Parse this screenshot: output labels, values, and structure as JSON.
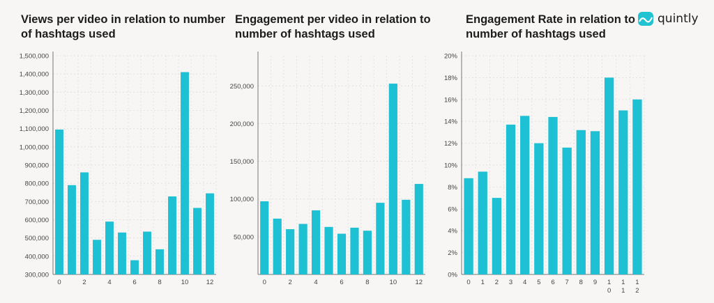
{
  "brand": {
    "name": "quintly",
    "icon": "wave-logo-icon",
    "color": "#21c2d2"
  },
  "colors": {
    "bar": "#1ec0d3",
    "grid": "#dcdcdc",
    "axis": "#777777"
  },
  "chart_data": [
    {
      "type": "bar",
      "title_lines": [
        "Views per video in relation to number",
        "of hashtags used"
      ],
      "categories": [
        "0",
        "1",
        "2",
        "3",
        "4",
        "5",
        "6",
        "7",
        "8",
        "9",
        "10",
        "11",
        "12"
      ],
      "values": [
        1095000,
        790000,
        860000,
        490000,
        590000,
        530000,
        378000,
        535000,
        438000,
        728000,
        1410000,
        665000,
        745000
      ],
      "ylim": [
        300000,
        1500000
      ],
      "y_ticks": [
        "300,000",
        "400,000",
        "500,000",
        "600,000",
        "700,000",
        "800,000",
        "900,000",
        "1,000,000",
        "1,100,000",
        "1,200,000",
        "1,300,000",
        "1,400,000",
        "1,500,000"
      ],
      "x_tick_labels": [
        [
          "0"
        ],
        [
          ""
        ],
        [
          "2"
        ],
        [
          ""
        ],
        [
          "4"
        ],
        [
          ""
        ],
        [
          "6"
        ],
        [
          ""
        ],
        [
          "8"
        ],
        [
          ""
        ],
        [
          "10"
        ],
        [
          ""
        ],
        [
          "12"
        ]
      ],
      "grid": true
    },
    {
      "type": "bar",
      "title_lines": [
        "Engagement per video in relation to",
        "number of hashtags used"
      ],
      "categories": [
        "0",
        "1",
        "2",
        "3",
        "4",
        "5",
        "6",
        "7",
        "8",
        "9",
        "10",
        "11",
        "12"
      ],
      "values": [
        97000,
        74000,
        60000,
        67000,
        85000,
        63000,
        54000,
        62000,
        58000,
        95000,
        253000,
        99000,
        120000
      ],
      "ylim": [
        0,
        290000
      ],
      "y_ticks": [
        "50,000",
        "100,000",
        "150,000",
        "200,000",
        "250,000"
      ],
      "x_tick_labels": [
        [
          "0"
        ],
        [
          ""
        ],
        [
          "2"
        ],
        [
          ""
        ],
        [
          "4"
        ],
        [
          ""
        ],
        [
          "6"
        ],
        [
          ""
        ],
        [
          "8"
        ],
        [
          ""
        ],
        [
          "10"
        ],
        [
          ""
        ],
        [
          "12"
        ]
      ],
      "grid": true
    },
    {
      "type": "bar",
      "title_lines": [
        "Engagement Rate in relation to",
        "number of hashtags used"
      ],
      "categories": [
        "0",
        "1",
        "2",
        "3",
        "4",
        "5",
        "6",
        "7",
        "8",
        "9",
        "10",
        "11",
        "12"
      ],
      "values": [
        8.8,
        9.4,
        7.0,
        13.7,
        14.5,
        12.0,
        14.4,
        11.6,
        13.2,
        13.1,
        18.0,
        15.0,
        16.0
      ],
      "ylim": [
        0,
        20
      ],
      "y_ticks": [
        "0%",
        "2%",
        "4%",
        "6%",
        "8%",
        "10%",
        "12%",
        "14%",
        "16%",
        "18%",
        "20%"
      ],
      "x_tick_labels": [
        [
          "0"
        ],
        [
          "1"
        ],
        [
          "2"
        ],
        [
          "3"
        ],
        [
          "4"
        ],
        [
          "5"
        ],
        [
          "6"
        ],
        [
          "7"
        ],
        [
          "8"
        ],
        [
          "9"
        ],
        [
          "1",
          "0"
        ],
        [
          "1",
          "1"
        ],
        [
          "1",
          "2"
        ]
      ],
      "grid": true
    }
  ]
}
